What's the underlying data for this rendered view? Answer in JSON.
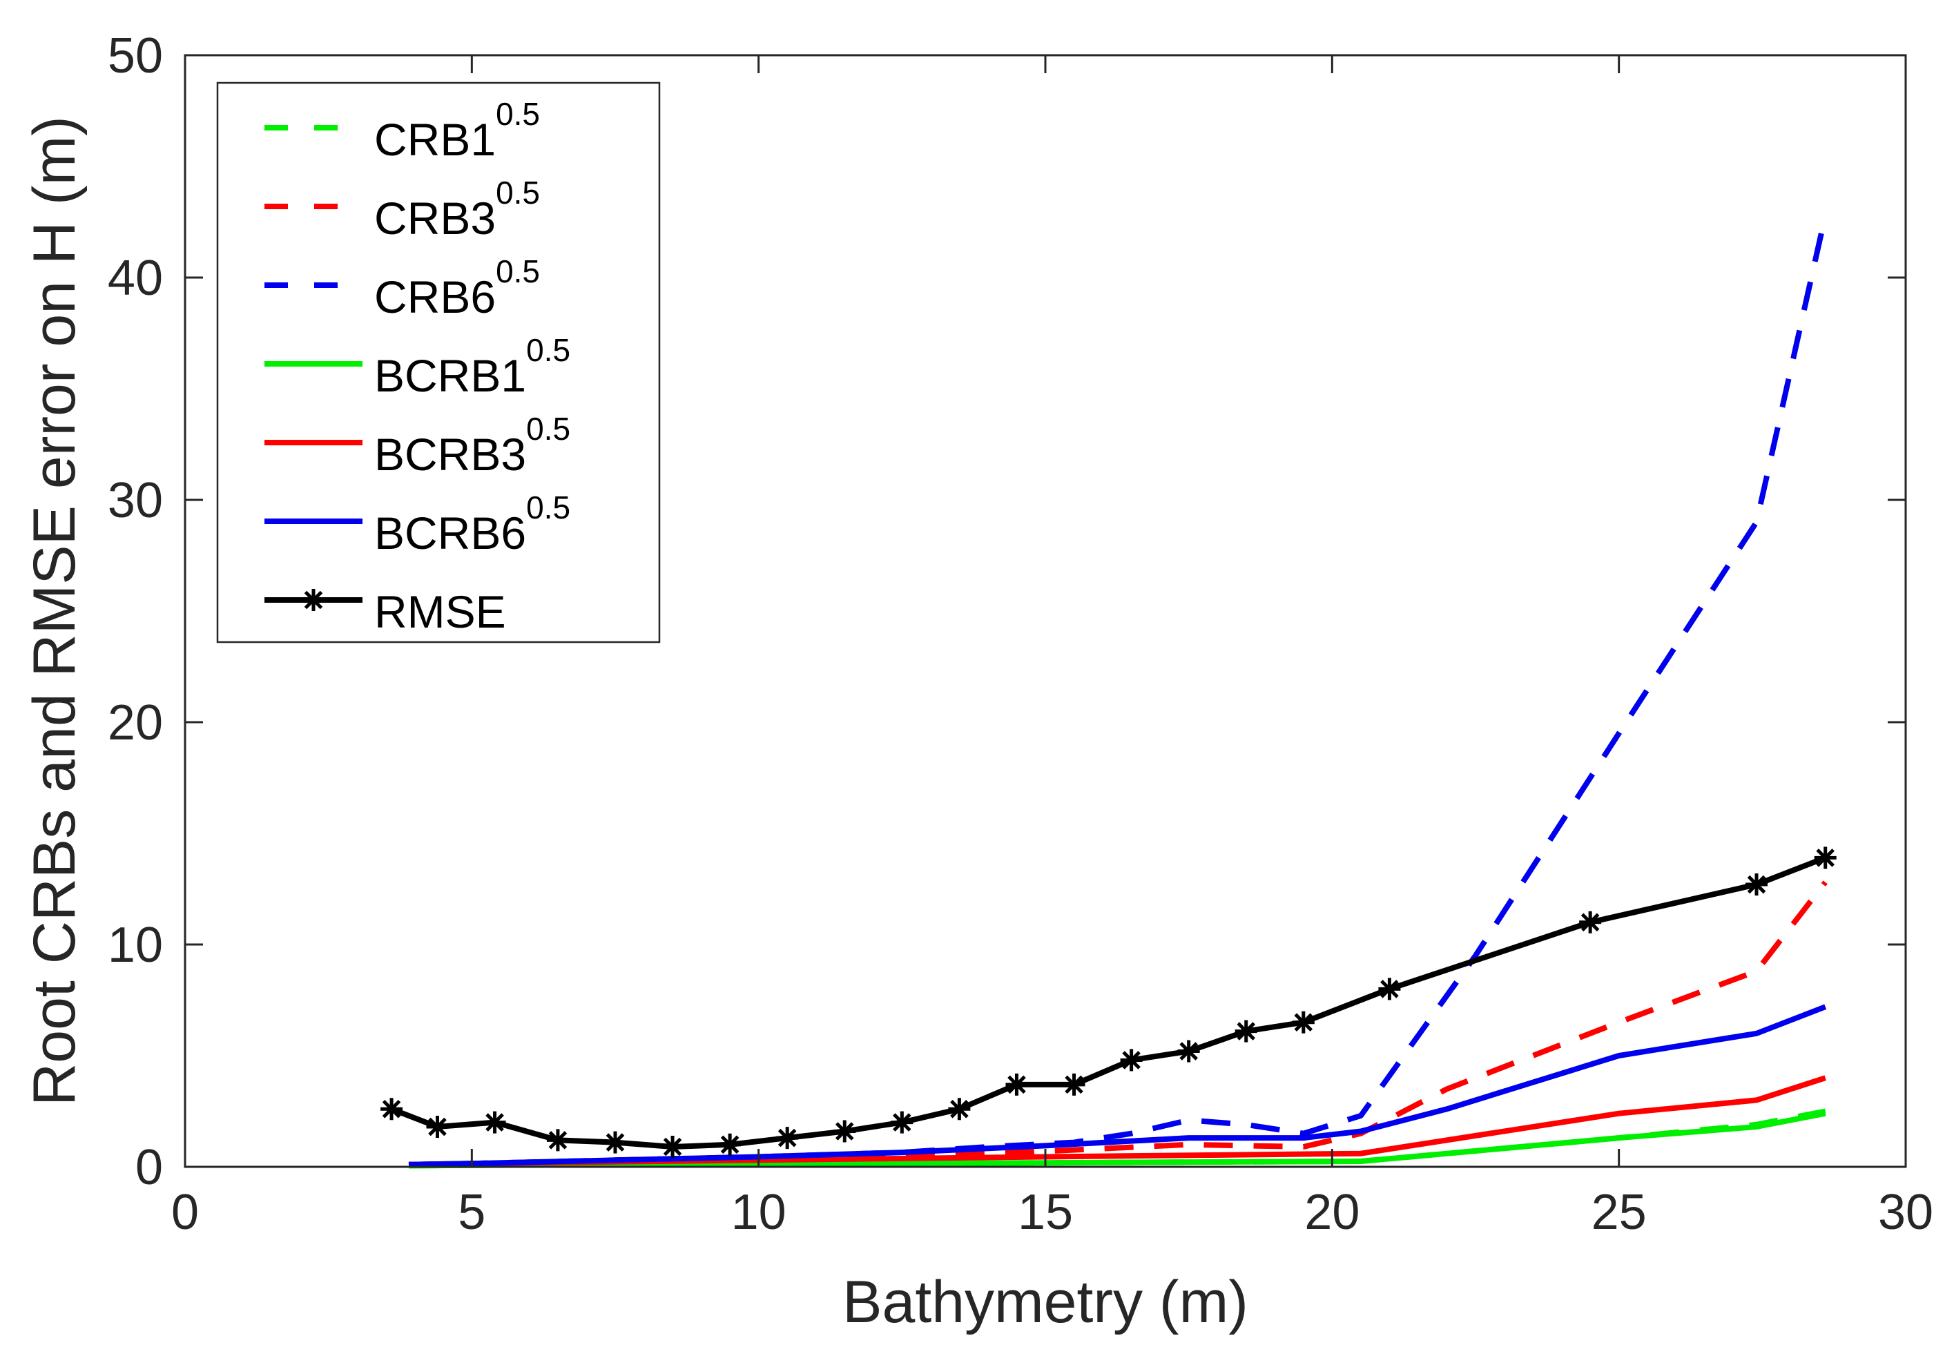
{
  "chart_data": {
    "type": "line",
    "title": "",
    "xlabel": "Bathymetry (m)",
    "ylabel": "Root CRBs and RMSE error on H (m)",
    "xlim": [
      0,
      30
    ],
    "ylim": [
      0,
      50
    ],
    "xticks": [
      0,
      5,
      10,
      15,
      20,
      25,
      30
    ],
    "yticks": [
      0,
      10,
      20,
      30,
      40,
      50
    ],
    "grid": false,
    "legend_position": "top-left",
    "series": [
      {
        "name": "CRB1",
        "sup": "0.5",
        "color": "#00ee00",
        "style": "dashed",
        "marker": "none",
        "x": [
          3.9,
          5,
          10,
          15,
          20.5,
          25,
          27.4,
          28.6
        ],
        "y": [
          0.05,
          0.07,
          0.12,
          0.18,
          0.25,
          1.3,
          1.9,
          2.5
        ]
      },
      {
        "name": "CRB3",
        "sup": "0.5",
        "color": "#ff0000",
        "style": "dashed",
        "marker": "none",
        "x": [
          3.9,
          5,
          7.5,
          10,
          12.5,
          15,
          17.5,
          19.5,
          20.5,
          22,
          25,
          27.4,
          28.6
        ],
        "y": [
          0.1,
          0.15,
          0.25,
          0.35,
          0.5,
          0.7,
          1.0,
          0.9,
          1.5,
          3.5,
          6.5,
          8.8,
          12.8
        ]
      },
      {
        "name": "CRB6",
        "sup": "0.5",
        "color": "#0000ee",
        "style": "dashed",
        "marker": "none",
        "x": [
          3.9,
          5,
          7.5,
          10,
          12.5,
          14,
          15.5,
          16.5,
          17.5,
          18.5,
          19.5,
          20.5,
          22.5,
          25,
          27.4,
          28.6
        ],
        "y": [
          0.1,
          0.15,
          0.3,
          0.45,
          0.65,
          0.9,
          1.1,
          1.5,
          2.1,
          1.9,
          1.5,
          2.3,
          9.5,
          19.5,
          29.0,
          42.8
        ]
      },
      {
        "name": "BCRB1",
        "sup": "0.5",
        "color": "#00ee00",
        "style": "solid",
        "marker": "none",
        "x": [
          3.9,
          5,
          10,
          15,
          20.5,
          25,
          27.4,
          28.6
        ],
        "y": [
          0.05,
          0.07,
          0.12,
          0.18,
          0.25,
          1.3,
          1.8,
          2.4
        ]
      },
      {
        "name": "BCRB3",
        "sup": "0.5",
        "color": "#ff0000",
        "style": "solid",
        "marker": "none",
        "x": [
          3.9,
          5,
          10,
          15,
          20.5,
          25,
          27.4,
          28.6
        ],
        "y": [
          0.1,
          0.15,
          0.3,
          0.45,
          0.6,
          2.4,
          3.0,
          4.0
        ]
      },
      {
        "name": "BCRB6",
        "sup": "0.5",
        "color": "#0000ee",
        "style": "solid",
        "marker": "none",
        "x": [
          3.9,
          5,
          7.5,
          10,
          12.5,
          15,
          17.5,
          19.5,
          20.5,
          22,
          25,
          27.4,
          28.6
        ],
        "y": [
          0.1,
          0.15,
          0.3,
          0.45,
          0.65,
          0.95,
          1.3,
          1.3,
          1.6,
          2.6,
          5.0,
          6.0,
          7.2
        ]
      },
      {
        "name": "RMSE",
        "sup": "",
        "color": "#000000",
        "style": "solid",
        "marker": "star",
        "x": [
          3.6,
          4.4,
          5.4,
          6.5,
          7.5,
          8.5,
          9.5,
          10.5,
          11.5,
          12.5,
          13.5,
          14.5,
          15.5,
          16.5,
          17.5,
          18.5,
          19.5,
          21.0,
          24.5,
          27.4,
          28.6
        ],
        "y": [
          2.6,
          1.8,
          2.0,
          1.2,
          1.1,
          0.9,
          1.0,
          1.3,
          1.6,
          2.0,
          2.6,
          3.7,
          3.7,
          4.8,
          5.2,
          6.1,
          6.5,
          8.0,
          11.0,
          12.7,
          13.9
        ]
      }
    ]
  }
}
